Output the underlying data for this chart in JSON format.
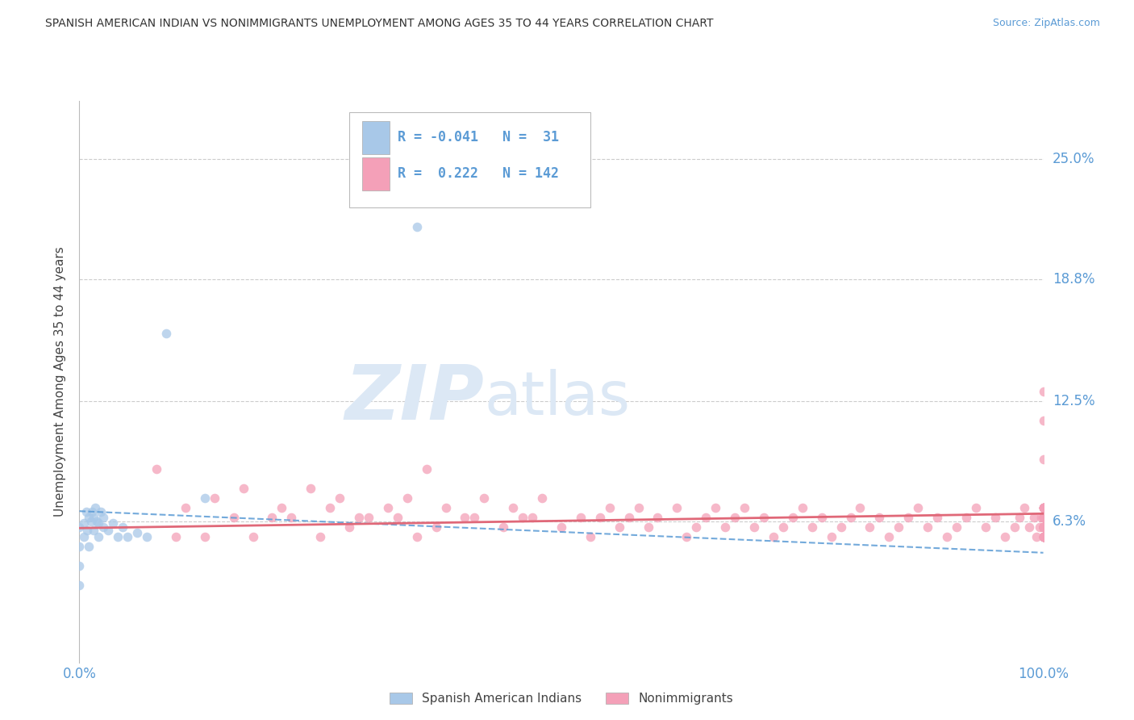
{
  "title": "SPANISH AMERICAN INDIAN VS NONIMMIGRANTS UNEMPLOYMENT AMONG AGES 35 TO 44 YEARS CORRELATION CHART",
  "source": "Source: ZipAtlas.com",
  "ylabel": "Unemployment Among Ages 35 to 44 years",
  "xlim": [
    0.0,
    1.0
  ],
  "ylim": [
    -0.01,
    0.28
  ],
  "ytick_values": [
    0.063,
    0.125,
    0.188,
    0.25
  ],
  "ytick_labels": [
    "6.3%",
    "12.5%",
    "18.8%",
    "25.0%"
  ],
  "ytick_color": "#5b9bd5",
  "xtick_color": "#5b9bd5",
  "grid_color": "#cccccc",
  "background_color": "#ffffff",
  "watermark_line1": "ZIP",
  "watermark_line2": "atlas",
  "watermark_color": "#dce8f5",
  "legend_r1": "-0.041",
  "legend_n1": "31",
  "legend_r2": "0.222",
  "legend_n2": "142",
  "legend_label1": "Spanish American Indians",
  "legend_label2": "Nonimmigrants",
  "color_blue": "#a8c8e8",
  "color_pink": "#f4a0b8",
  "line_color_blue": "#5b9bd5",
  "line_color_pink": "#e06878",
  "dot_size": 70,
  "blue_x": [
    0.0,
    0.0,
    0.0,
    0.0,
    0.005,
    0.005,
    0.007,
    0.008,
    0.01,
    0.01,
    0.012,
    0.013,
    0.015,
    0.015,
    0.016,
    0.018,
    0.02,
    0.02,
    0.022,
    0.025,
    0.025,
    0.03,
    0.035,
    0.04,
    0.045,
    0.05,
    0.06,
    0.07,
    0.09,
    0.13,
    0.35
  ],
  "blue_y": [
    0.03,
    0.04,
    0.05,
    0.06,
    0.055,
    0.062,
    0.068,
    0.058,
    0.05,
    0.065,
    0.063,
    0.068,
    0.058,
    0.065,
    0.07,
    0.063,
    0.055,
    0.062,
    0.068,
    0.06,
    0.065,
    0.058,
    0.062,
    0.055,
    0.06,
    0.055,
    0.057,
    0.055,
    0.16,
    0.075,
    0.215
  ],
  "pink_x": [
    0.08,
    0.1,
    0.11,
    0.13,
    0.14,
    0.16,
    0.17,
    0.18,
    0.2,
    0.21,
    0.22,
    0.24,
    0.25,
    0.26,
    0.27,
    0.28,
    0.29,
    0.3,
    0.32,
    0.33,
    0.34,
    0.35,
    0.36,
    0.37,
    0.38,
    0.4,
    0.41,
    0.42,
    0.44,
    0.45,
    0.46,
    0.47,
    0.48,
    0.5,
    0.52,
    0.53,
    0.54,
    0.55,
    0.56,
    0.57,
    0.58,
    0.59,
    0.6,
    0.62,
    0.63,
    0.64,
    0.65,
    0.66,
    0.67,
    0.68,
    0.69,
    0.7,
    0.71,
    0.72,
    0.73,
    0.74,
    0.75,
    0.76,
    0.77,
    0.78,
    0.79,
    0.8,
    0.81,
    0.82,
    0.83,
    0.84,
    0.85,
    0.86,
    0.87,
    0.88,
    0.89,
    0.9,
    0.91,
    0.92,
    0.93,
    0.94,
    0.95,
    0.96,
    0.97,
    0.975,
    0.98,
    0.985,
    0.99,
    0.993,
    0.996,
    0.998,
    1.0,
    1.0,
    1.0,
    1.0,
    1.0,
    1.0,
    1.0,
    1.0,
    1.0,
    1.0,
    1.0,
    1.0,
    1.0,
    1.0,
    1.0,
    1.0,
    1.0,
    1.0,
    1.0,
    1.0,
    1.0,
    1.0,
    1.0,
    1.0,
    1.0,
    1.0,
    1.0,
    1.0,
    1.0,
    1.0,
    1.0,
    1.0,
    1.0,
    1.0,
    1.0,
    1.0,
    1.0,
    1.0,
    1.0,
    1.0,
    1.0,
    1.0,
    1.0,
    1.0,
    1.0,
    1.0,
    1.0,
    1.0,
    1.0,
    1.0,
    1.0,
    1.0,
    1.0
  ],
  "pink_y": [
    0.09,
    0.055,
    0.07,
    0.055,
    0.075,
    0.065,
    0.08,
    0.055,
    0.065,
    0.07,
    0.065,
    0.08,
    0.055,
    0.07,
    0.075,
    0.06,
    0.065,
    0.065,
    0.07,
    0.065,
    0.075,
    0.055,
    0.09,
    0.06,
    0.07,
    0.065,
    0.065,
    0.075,
    0.06,
    0.07,
    0.065,
    0.065,
    0.075,
    0.06,
    0.065,
    0.055,
    0.065,
    0.07,
    0.06,
    0.065,
    0.07,
    0.06,
    0.065,
    0.07,
    0.055,
    0.06,
    0.065,
    0.07,
    0.06,
    0.065,
    0.07,
    0.06,
    0.065,
    0.055,
    0.06,
    0.065,
    0.07,
    0.06,
    0.065,
    0.055,
    0.06,
    0.065,
    0.07,
    0.06,
    0.065,
    0.055,
    0.06,
    0.065,
    0.07,
    0.06,
    0.065,
    0.055,
    0.06,
    0.065,
    0.07,
    0.06,
    0.065,
    0.055,
    0.06,
    0.065,
    0.07,
    0.06,
    0.065,
    0.055,
    0.06,
    0.065,
    0.07,
    0.06,
    0.065,
    0.055,
    0.06,
    0.065,
    0.07,
    0.06,
    0.065,
    0.055,
    0.06,
    0.065,
    0.07,
    0.06,
    0.065,
    0.055,
    0.06,
    0.065,
    0.07,
    0.06,
    0.065,
    0.055,
    0.06,
    0.065,
    0.07,
    0.06,
    0.065,
    0.055,
    0.06,
    0.065,
    0.07,
    0.06,
    0.065,
    0.055,
    0.06,
    0.065,
    0.07,
    0.06,
    0.065,
    0.055,
    0.06,
    0.065,
    0.055,
    0.06,
    0.065,
    0.115,
    0.055,
    0.06,
    0.065,
    0.07,
    0.06,
    0.095,
    0.13
  ]
}
